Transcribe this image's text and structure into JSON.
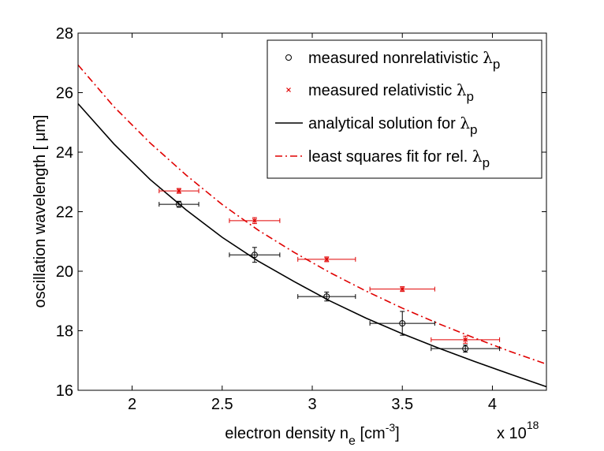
{
  "chart_data": {
    "type": "scatter",
    "xlabel": "electron density n",
    "xlabel_sub": "e",
    "xlabel_unit_open": " [cm",
    "xlabel_unit_sup": "-3",
    "xlabel_unit_close": "]",
    "ylabel": "oscillation wavelength [ μm]",
    "x_multiplier_base": "x 10",
    "x_multiplier_exp": "18",
    "xlim": [
      1.7,
      4.3
    ],
    "ylim": [
      16,
      28
    ],
    "xticks": [
      "2",
      "2.5",
      "3",
      "3.5",
      "4"
    ],
    "yticks": [
      "16",
      "18",
      "20",
      "22",
      "24",
      "26",
      "28"
    ],
    "grid": false,
    "legend_position": "top-right",
    "legend": [
      {
        "prefix": "measured nonrelativistic ",
        "greek": "λ",
        "sub": "p"
      },
      {
        "prefix": "measured relativistic ",
        "greek": "λ",
        "sub": "p"
      },
      {
        "prefix": "analytical solution for ",
        "greek": "λ",
        "sub": "p"
      },
      {
        "prefix": "least squares fit for rel. ",
        "greek": "λ",
        "sub": "p"
      }
    ],
    "series": [
      {
        "kind": "points",
        "marker": "circle",
        "color": "#000000",
        "points": [
          {
            "x": 2.26,
            "y": 22.25,
            "xerr": 0.11,
            "yerr": 0.1
          },
          {
            "x": 2.68,
            "y": 20.55,
            "xerr": 0.14,
            "yerr": 0.25
          },
          {
            "x": 3.08,
            "y": 19.15,
            "xerr": 0.16,
            "yerr": 0.15
          },
          {
            "x": 3.5,
            "y": 18.25,
            "xerr": 0.18,
            "yerr": 0.4
          },
          {
            "x": 3.85,
            "y": 17.4,
            "xerr": 0.19,
            "yerr": 0.12
          }
        ]
      },
      {
        "kind": "points",
        "marker": "x",
        "color": "#e00000",
        "points": [
          {
            "x": 2.26,
            "y": 22.7,
            "xerr": 0.11,
            "yerr": 0.08
          },
          {
            "x": 2.68,
            "y": 21.7,
            "xerr": 0.14,
            "yerr": 0.1
          },
          {
            "x": 3.08,
            "y": 20.4,
            "xerr": 0.16,
            "yerr": 0.08
          },
          {
            "x": 3.5,
            "y": 19.4,
            "xerr": 0.18,
            "yerr": 0.08
          },
          {
            "x": 3.85,
            "y": 17.7,
            "xerr": 0.19,
            "yerr": 0.12
          }
        ]
      },
      {
        "kind": "line",
        "style": "solid",
        "color": "#000000",
        "x": [
          1.7,
          1.9,
          2.1,
          2.3,
          2.5,
          2.7,
          2.9,
          3.1,
          3.3,
          3.5,
          3.7,
          3.9,
          4.1,
          4.3
        ],
        "y": [
          25.63,
          24.27,
          23.08,
          22.06,
          21.14,
          20.34,
          19.65,
          19.0,
          18.42,
          17.9,
          17.42,
          16.97,
          16.54,
          16.12
        ]
      },
      {
        "kind": "line",
        "style": "dashdot",
        "color": "#e00000",
        "x": [
          1.7,
          1.9,
          2.1,
          2.3,
          2.5,
          2.7,
          2.9,
          3.1,
          3.3,
          3.5,
          3.7,
          3.9,
          4.1,
          4.3
        ],
        "y": [
          26.93,
          25.52,
          24.31,
          23.23,
          22.24,
          21.38,
          20.63,
          19.95,
          19.33,
          18.76,
          18.24,
          17.76,
          17.3,
          16.88
        ]
      }
    ]
  }
}
